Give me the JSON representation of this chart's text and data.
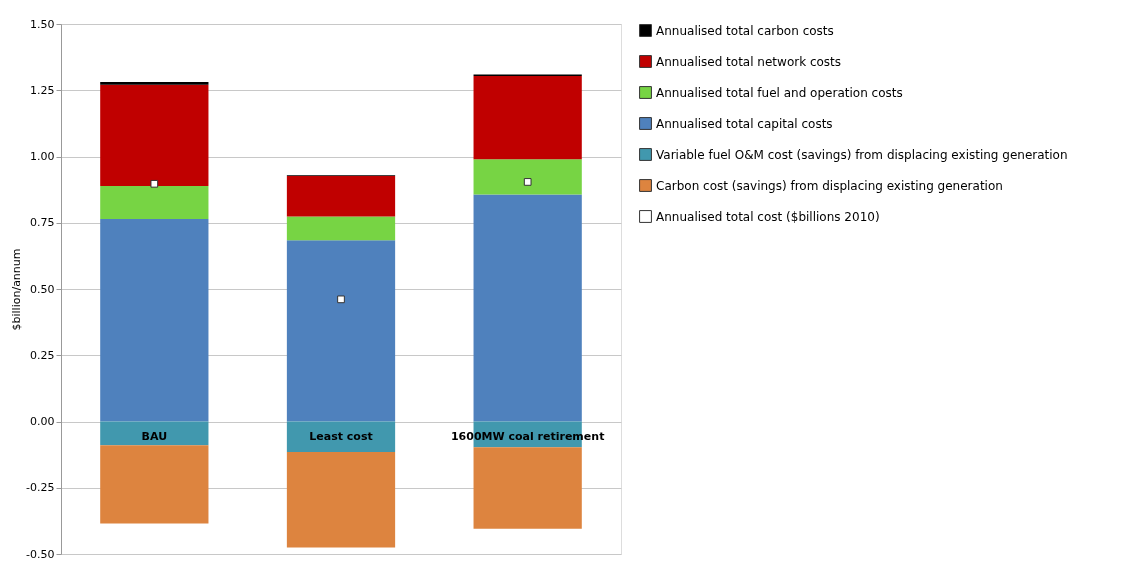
{
  "chart_data": {
    "type": "bar",
    "stacked": true,
    "ylabel": "$billion/annum",
    "categories": [
      "BAU",
      "Least cost",
      "1600MW coal retirement"
    ],
    "series": [
      {
        "name": "Annualised total capital costs",
        "color": "#4f81bd",
        "values": [
          0.764,
          0.684,
          0.857
        ]
      },
      {
        "name": "Annualised total fuel and operation costs",
        "color": "#77d444",
        "values": [
          0.125,
          0.09,
          0.133
        ]
      },
      {
        "name": "Annualised total network costs",
        "color": "#c00000",
        "values": [
          0.382,
          0.152,
          0.314
        ]
      },
      {
        "name": "Annualised total carbon costs",
        "color": "#000000",
        "values": [
          0.01,
          0.003,
          0.005
        ]
      },
      {
        "name": "Variable fuel O&M cost (savings) from displacing existing generation",
        "color": "#4198ae",
        "values": [
          -0.09,
          -0.115,
          -0.097
        ]
      },
      {
        "name": "Carbon cost (savings) from displacing existing generation",
        "color": "#dd843f",
        "values": [
          -0.295,
          -0.36,
          -0.308
        ]
      },
      {
        "name": "Annualised total cost ($billions 2010)",
        "type": "scatter",
        "marker": "square",
        "color": "#ffffff",
        "values": [
          0.897,
          0.461,
          0.904
        ]
      }
    ],
    "ylim": [
      -0.5,
      1.5
    ],
    "yticks": [
      {
        "value": -0.5,
        "label": "-0.50"
      },
      {
        "value": -0.25,
        "label": "-0.25"
      },
      {
        "value": 0,
        "label": "0.00"
      },
      {
        "value": 0.25,
        "label": "0.25"
      },
      {
        "value": 0.5,
        "label": "0.50"
      },
      {
        "value": 0.75,
        "label": "0.75"
      },
      {
        "value": 1.0,
        "label": "1.00"
      },
      {
        "value": 1.25,
        "label": "1.25"
      },
      {
        "value": 1.5,
        "label": "1.50"
      }
    ],
    "grid": "y",
    "legend": "right"
  }
}
